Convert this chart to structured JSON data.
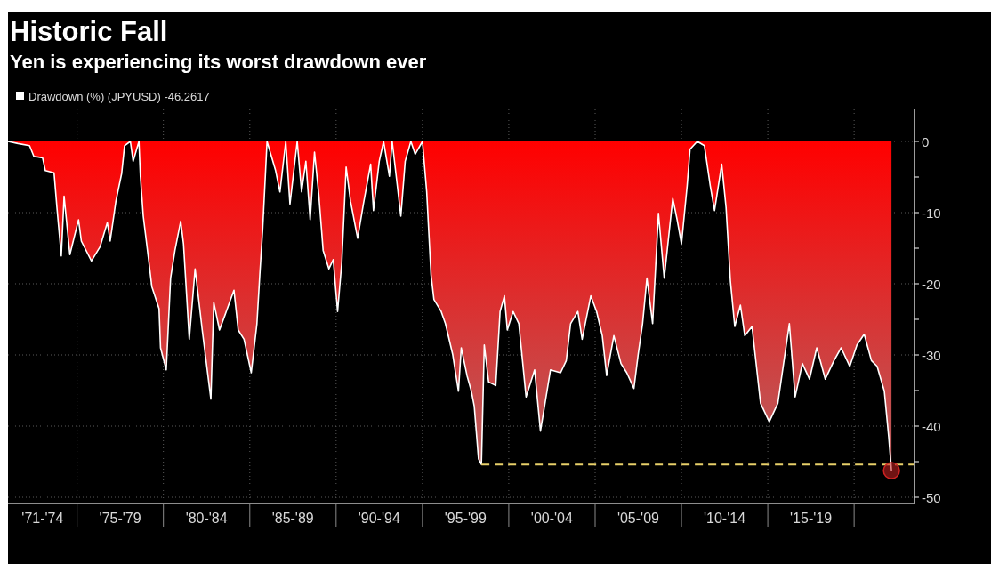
{
  "chart_data": {
    "type": "area",
    "title": "Historic Fall",
    "subtitle": "Yen is experiencing its worst drawdown ever",
    "xlim": [
      "1971-01-01",
      "2023-07-01"
    ],
    "xticks": [
      {
        "value": "1973-01-01",
        "label": "'71-'74"
      },
      {
        "value": "1975-01-01",
        "label": null
      },
      {
        "value": "1977-07-01",
        "label": "'75-'79"
      },
      {
        "value": "1980-01-01",
        "label": null
      },
      {
        "value": "1982-07-01",
        "label": "'80-'84"
      },
      {
        "value": "1985-01-01",
        "label": null
      },
      {
        "value": "1987-07-01",
        "label": "'85-'89"
      },
      {
        "value": "1990-01-01",
        "label": null
      },
      {
        "value": "1992-07-01",
        "label": "'90-'94"
      },
      {
        "value": "1995-01-01",
        "label": null
      },
      {
        "value": "1997-07-01",
        "label": "'95-'99"
      },
      {
        "value": "2000-01-01",
        "label": null
      },
      {
        "value": "2002-07-01",
        "label": "'00-'04"
      },
      {
        "value": "2005-01-01",
        "label": null
      },
      {
        "value": "2007-07-01",
        "label": "'05-'09"
      },
      {
        "value": "2010-01-01",
        "label": null
      },
      {
        "value": "2012-07-01",
        "label": "'10-'14"
      },
      {
        "value": "2015-01-01",
        "label": null
      },
      {
        "value": "2017-07-01",
        "label": "'15-'19"
      },
      {
        "value": "2020-01-01",
        "label": null
      }
    ],
    "ylim": [
      -50.5,
      4.5
    ],
    "yticks": [
      0,
      {
        "value": -5,
        "label": null
      },
      -10,
      {
        "value": -15,
        "label": null
      },
      -20,
      {
        "value": -25,
        "label": null
      },
      -30,
      {
        "value": -35,
        "label": null
      },
      -40,
      {
        "value": -45,
        "label": null
      },
      -50
    ],
    "grid": true,
    "legend": "top left",
    "ref_lines": [
      {
        "axis": "y",
        "value": -45.4,
        "color": "#e8d06a",
        "line_style": "dashed"
      }
    ],
    "series": [
      {
        "name": "Drawdown (%) (JPYUSD) -46.2617",
        "color": "#ffffff",
        "x": [
          "1971-01",
          "1971-08",
          "1972-04",
          "1972-07",
          "1973-01",
          "1973-03",
          "1973-09",
          "1973-11",
          "1974-02",
          "1974-04",
          "1974-08",
          "1975-02",
          "1975-04",
          "1975-11",
          "1976-05",
          "1976-10",
          "1976-12",
          "1977-04",
          "1977-08",
          "1977-10",
          "1978-02",
          "1978-04",
          "1978-08",
          "1978-09",
          "1978-11",
          "1979-03",
          "1979-05",
          "1979-10",
          "1979-11",
          "1980-03",
          "1980-06",
          "1980-09",
          "1981-01",
          "1981-03",
          "1981-07",
          "1981-11",
          "1982-04",
          "1982-10",
          "1982-12",
          "1983-04",
          "1983-08",
          "1984-02",
          "1984-05",
          "1984-09",
          "1985-02",
          "1985-06",
          "1985-08",
          "1985-10",
          "1986-01",
          "1986-07",
          "1986-10",
          "1987-02",
          "1987-05",
          "1987-10",
          "1988-01",
          "1988-04",
          "1988-07",
          "1988-10",
          "1989-01",
          "1989-04",
          "1989-08",
          "1989-11",
          "1990-02",
          "1990-05",
          "1990-08",
          "1990-11",
          "1991-04",
          "1991-08",
          "1992-01",
          "1992-03",
          "1992-07",
          "1992-10",
          "1993-02",
          "1993-04",
          "1993-10",
          "1994-01",
          "1994-05",
          "1994-08",
          "1995-01",
          "1995-04",
          "1995-07",
          "1995-09",
          "1996-02",
          "1996-05",
          "1996-10",
          "1997-02",
          "1997-04",
          "1997-08",
          "1997-11",
          "1998-01",
          "1998-04",
          "1998-06",
          "1998-08",
          "1998-11",
          "1999-04",
          "1999-07",
          "1999-10",
          "1999-12",
          "2000-04",
          "2000-08",
          "2001-01",
          "2001-07",
          "2001-11",
          "2002-06",
          "2003-01",
          "2003-05",
          "2003-08",
          "2004-01",
          "2004-04",
          "2004-10",
          "2005-02",
          "2005-06",
          "2005-09",
          "2006-02",
          "2006-07",
          "2006-11",
          "2007-04",
          "2007-07",
          "2007-10",
          "2008-01",
          "2008-05",
          "2008-09",
          "2009-01",
          "2009-07",
          "2009-10",
          "2010-01",
          "2010-05",
          "2010-07",
          "2010-12",
          "2011-05",
          "2011-09",
          "2011-12",
          "2012-05",
          "2012-08",
          "2012-11",
          "2013-02",
          "2013-06",
          "2013-09",
          "2014-02",
          "2014-08",
          "2015-02",
          "2015-08",
          "2016-04",
          "2016-08",
          "2017-01",
          "2017-06",
          "2017-11",
          "2018-05",
          "2018-11",
          "2019-04",
          "2019-10",
          "2020-03",
          "2020-08",
          "2021-01",
          "2021-05",
          "2021-10",
          "2022-01",
          "2022-03"
        ],
        "values": [
          0,
          -0.3,
          -0.6,
          -2.1,
          -2.3,
          -4.1,
          -4.4,
          -9.3,
          -16.1,
          -7.7,
          -15.9,
          -11.0,
          -14.0,
          -16.8,
          -14.8,
          -11.4,
          -14.0,
          -8.4,
          -4.5,
          -0.6,
          0,
          -2.8,
          0,
          -4.9,
          -10.5,
          -17.0,
          -20.4,
          -23.5,
          -29.0,
          -32.1,
          -19.2,
          -15.3,
          -11.2,
          -14.4,
          -27.8,
          -17.9,
          -26.5,
          -36.2,
          -22.6,
          -26.5,
          -24.3,
          -20.9,
          -26.5,
          -27.8,
          -32.5,
          -25.6,
          -18.7,
          -12.3,
          0,
          -4.1,
          -7.1,
          0,
          -8.8,
          0,
          -7.1,
          -2.8,
          -11.0,
          -1.5,
          -7.6,
          -15.3,
          -17.9,
          -16.6,
          -23.9,
          -17.0,
          -3.6,
          -8.4,
          -13.6,
          -8.8,
          -3.2,
          -9.7,
          -2.8,
          0,
          -4.9,
          0,
          -10.5,
          -2.8,
          0,
          -1.8,
          0,
          -7.1,
          -18.7,
          -22.2,
          -23.9,
          -25.6,
          -29.9,
          -35.1,
          -29.0,
          -32.9,
          -35.1,
          -37.2,
          -44.6,
          -45.4,
          -28.6,
          -33.8,
          -34.3,
          -23.9,
          -21.7,
          -26.5,
          -23.9,
          -25.6,
          -35.9,
          -32.1,
          -40.7,
          -32.1,
          -32.5,
          -30.8,
          -25.6,
          -23.9,
          -27.8,
          -21.7,
          -23.9,
          -27.3,
          -32.9,
          -27.3,
          -31.2,
          -32.5,
          -34.7,
          -29.9,
          -25.6,
          -19.2,
          -25.6,
          -10.1,
          -19.2,
          -8.0,
          -11.0,
          -14.4,
          -6.2,
          -1.1,
          0,
          -0.6,
          -6.2,
          -9.7,
          -3.2,
          -9.3,
          -19.6,
          -26.0,
          -23.0,
          -27.3,
          -26.0,
          -36.8,
          -39.4,
          -36.8,
          -25.6,
          -35.9,
          -31.2,
          -33.4,
          -29.0,
          -33.4,
          -30.8,
          -29.0,
          -31.6,
          -28.6,
          -27.1,
          -30.8,
          -31.6,
          -35.1,
          -41.5,
          -46.2617
        ]
      },
      {
        "type": "scatter",
        "marker": "circle",
        "color": "#cc2222",
        "x": [
          "2022-03"
        ],
        "values": [
          -46.2617
        ]
      }
    ]
  }
}
